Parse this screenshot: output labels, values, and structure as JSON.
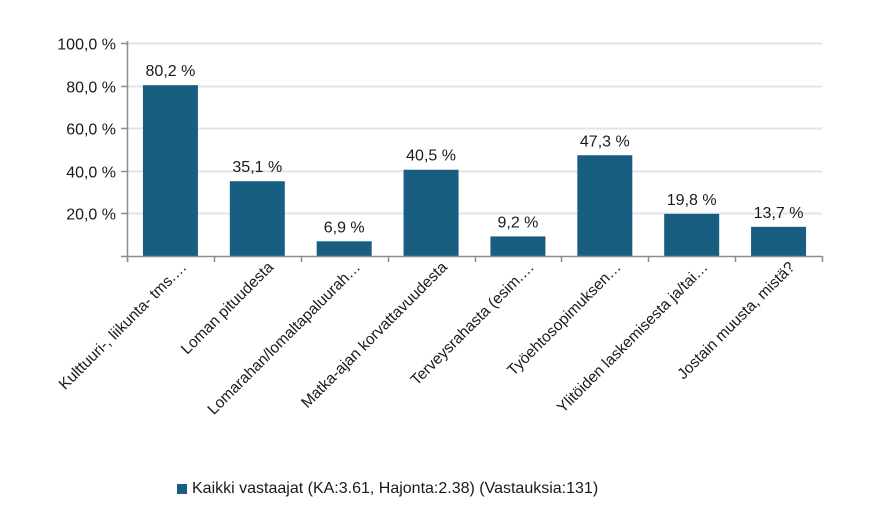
{
  "chart_data": {
    "type": "bar",
    "title": "",
    "xlabel": "",
    "ylabel": "",
    "ylim": [
      0,
      100
    ],
    "yticks": [
      20,
      40,
      60,
      80,
      100
    ],
    "ytick_labels": [
      "20,0 %",
      "40,0 %",
      "60,0 %",
      "80,0 %",
      "100,0 %"
    ],
    "grid": true,
    "legend_position": "bottom",
    "categories": [
      "Kulttuuri-, liikunta- tms.…",
      "Loman pituudesta",
      "Lomarahan/lomaltapaluurah…",
      "Matka-ajan korvattavuudesta",
      "Terveysrahasta (esim.…",
      "Työehtosopimuksen…",
      "Ylitöiden laskemisesta ja/tai…",
      "Jostain muusta, mistä?"
    ],
    "series": [
      {
        "name": "Kaikki vastaajat (KA:3.61, Hajonta:2.38) (Vastauksia:131)",
        "color": "#185e80",
        "values": [
          80.2,
          35.1,
          6.9,
          40.5,
          9.2,
          47.3,
          19.8,
          13.7
        ],
        "data_labels": [
          "80,2 %",
          "35,1 %",
          "6,9 %",
          "40,5 %",
          "9,2 %",
          "47,3 %",
          "19,8 %",
          "13,7 %"
        ]
      }
    ]
  },
  "legend": {
    "label": "Kaikki vastaajat (KA:3.61, Hajonta:2.38) (Vastauksia:131)",
    "color": "#185e80"
  },
  "colors": {
    "bar": "#185e80",
    "grid": "#dce6f2",
    "axis": "#8c8c8c"
  }
}
